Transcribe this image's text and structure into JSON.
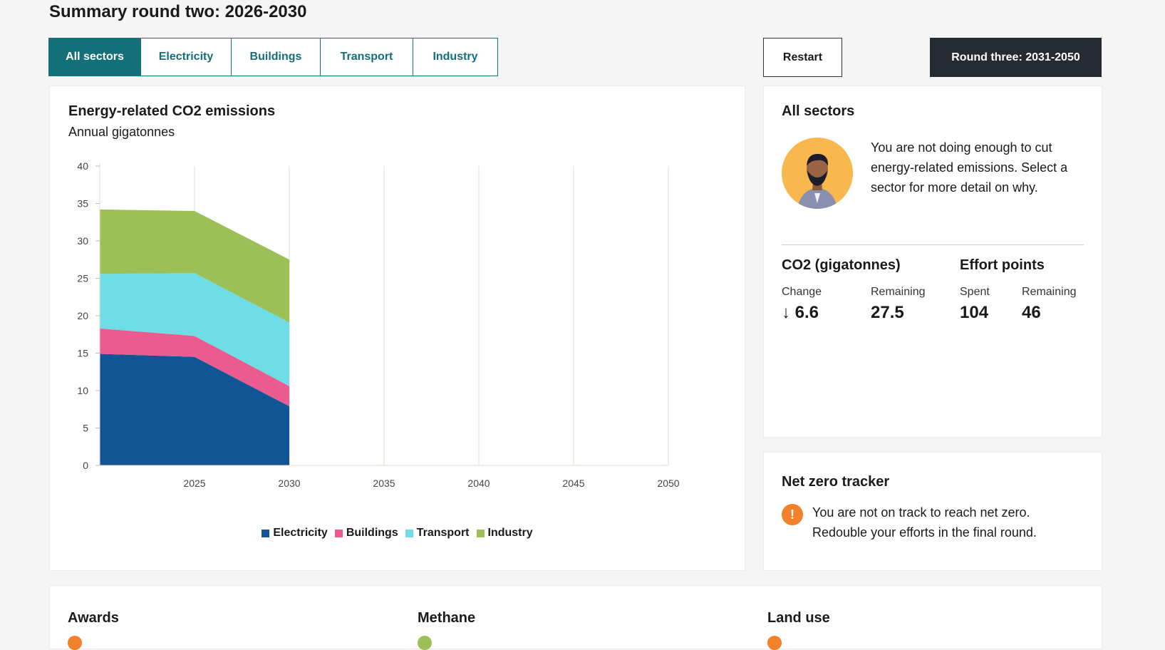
{
  "header": {
    "title": "Summary round two: 2026-2030"
  },
  "tabs": [
    {
      "label": "All sectors",
      "active": true
    },
    {
      "label": "Electricity",
      "active": false
    },
    {
      "label": "Buildings",
      "active": false
    },
    {
      "label": "Transport",
      "active": false
    },
    {
      "label": "Industry",
      "active": false
    }
  ],
  "actions": {
    "restart_label": "Restart",
    "next_round_label": "Round three: 2031-2050"
  },
  "chart_data": {
    "type": "area",
    "stacked": true,
    "title": "Energy-related CO2 emissions",
    "subtitle": "Annual gigatonnes",
    "x": [
      2020,
      2025,
      2030
    ],
    "x_range": [
      2020,
      2050
    ],
    "x_ticks": [
      2025,
      2030,
      2035,
      2040,
      2045,
      2050
    ],
    "ylim": [
      0,
      40
    ],
    "y_ticks": [
      0,
      5,
      10,
      15,
      20,
      25,
      30,
      35,
      40
    ],
    "grid": "vertical",
    "legend_position": "bottom",
    "series": [
      {
        "name": "Electricity",
        "color": "#115597",
        "values": [
          14.9,
          14.5,
          7.9
        ]
      },
      {
        "name": "Buildings",
        "color": "#ea5b8f",
        "values": [
          3.4,
          2.8,
          2.7
        ]
      },
      {
        "name": "Transport",
        "color": "#6fdde5",
        "values": [
          7.3,
          8.4,
          8.5
        ]
      },
      {
        "name": "Industry",
        "color": "#9cc057",
        "values": [
          8.6,
          8.3,
          8.4
        ]
      }
    ]
  },
  "sector_panel": {
    "heading": "All sectors",
    "avatar_icon": "advisor-avatar",
    "feedback": "You are not doing enough to cut energy-related emissions. Select a sector for more detail on why.",
    "co2": {
      "heading": "CO2 (gigatonnes)",
      "change_label": "Change",
      "change_value": "↓ 6.6",
      "remaining_label": "Remaining",
      "remaining_value": "27.5"
    },
    "effort": {
      "heading": "Effort points",
      "spent_label": "Spent",
      "spent_value": "104",
      "remaining_label": "Remaining",
      "remaining_value": "46"
    }
  },
  "tracker": {
    "heading": "Net zero tracker",
    "icon": "warning-icon",
    "icon_glyph": "!",
    "message": "You are not on track to reach net zero. Redouble your efforts in the final round."
  },
  "bottom": {
    "sections": [
      {
        "title": "Awards",
        "status_color": "#f2812c"
      },
      {
        "title": "Methane",
        "status_color": "#9cc057"
      },
      {
        "title": "Land use",
        "status_color": "#f2812c"
      }
    ]
  }
}
